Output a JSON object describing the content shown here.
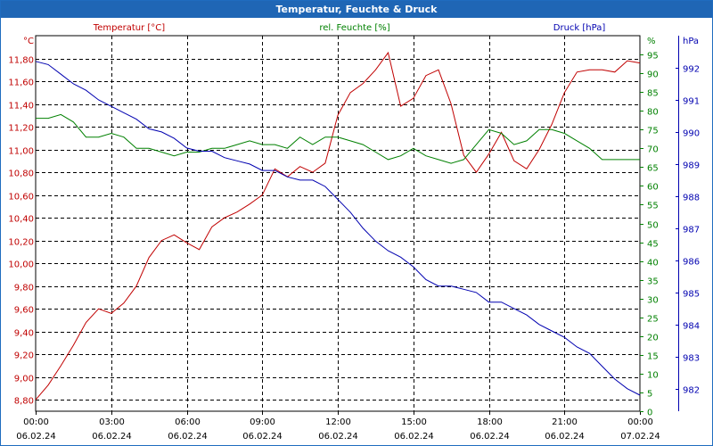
{
  "window": {
    "title": "Temperatur, Feuchte & Druck"
  },
  "colors": {
    "temperature": "#c00000",
    "humidity": "#008000",
    "pressure": "#0000b0",
    "title_bar": "#1f66b5"
  },
  "chart_data": {
    "type": "line",
    "title": "Temperatur, Feuchte & Druck",
    "x_ticks": [
      {
        "time": "00:00",
        "date": "06.02.24"
      },
      {
        "time": "03:00",
        "date": "06.02.24"
      },
      {
        "time": "06:00",
        "date": "06.02.24"
      },
      {
        "time": "09:00",
        "date": "06.02.24"
      },
      {
        "time": "12:00",
        "date": "06.02.24"
      },
      {
        "time": "15:00",
        "date": "06.02.24"
      },
      {
        "time": "18:00",
        "date": "06.02.24"
      },
      {
        "time": "21:00",
        "date": "06.02.24"
      },
      {
        "time": "00:00",
        "date": "07.02.24"
      }
    ],
    "x_range_hours": [
      0,
      24
    ],
    "grid": true,
    "axes": {
      "temperature": {
        "unit_label": "°C",
        "range": [
          8.7,
          12.0
        ],
        "ticks": [
          "8,80",
          "9,00",
          "9,20",
          "9,40",
          "9,60",
          "9,80",
          "10,00",
          "10,20",
          "10,40",
          "10,60",
          "10,80",
          "11,00",
          "11,20",
          "11,40",
          "11,60",
          "11,80"
        ]
      },
      "humidity": {
        "unit_label": "%",
        "range": [
          0,
          100
        ],
        "ticks": [
          "0",
          "5",
          "10",
          "15",
          "20",
          "25",
          "30",
          "35",
          "40",
          "45",
          "50",
          "55",
          "60",
          "65",
          "70",
          "75",
          "80",
          "85",
          "90",
          "95"
        ]
      },
      "pressure": {
        "unit_label": "hPa",
        "range": [
          981.3,
          993.0
        ],
        "ticks": [
          "982",
          "983",
          "984",
          "985",
          "986",
          "987",
          "988",
          "989",
          "990",
          "991",
          "992"
        ]
      }
    },
    "series": [
      {
        "name": "Temperatur [°C]",
        "axis": "temperature",
        "x": [
          0,
          0.5,
          1,
          1.5,
          2,
          2.5,
          3,
          3.5,
          4,
          4.5,
          5,
          5.5,
          6,
          6.5,
          7,
          7.5,
          8,
          8.5,
          9,
          9.5,
          10,
          10.5,
          11,
          11.5,
          12,
          12.5,
          13,
          13.5,
          14,
          14.5,
          15,
          15.5,
          16,
          16.5,
          17,
          17.5,
          18,
          18.5,
          19,
          19.5,
          20,
          20.5,
          21,
          21.5,
          22,
          22.5,
          23,
          23.5,
          24
        ],
        "values": [
          8.8,
          8.93,
          9.1,
          9.28,
          9.48,
          9.6,
          9.56,
          9.65,
          9.8,
          10.05,
          10.2,
          10.25,
          10.18,
          10.12,
          10.32,
          10.4,
          10.45,
          10.52,
          10.6,
          10.83,
          10.76,
          10.85,
          10.8,
          10.88,
          11.3,
          11.5,
          11.58,
          11.7,
          11.85,
          11.38,
          11.45,
          11.65,
          11.7,
          11.4,
          10.95,
          10.8,
          10.96,
          11.15,
          10.9,
          10.83,
          11.0,
          11.22,
          11.5,
          11.68,
          11.7,
          11.7,
          11.68,
          11.78,
          11.76
        ]
      },
      {
        "name": "rel. Feuchte [%]",
        "axis": "humidity",
        "x": [
          0,
          0.5,
          1,
          1.5,
          2,
          2.5,
          3,
          3.5,
          4,
          4.5,
          5,
          5.5,
          6,
          6.5,
          7,
          7.5,
          8,
          8.5,
          9,
          9.5,
          10,
          10.5,
          11,
          11.5,
          12,
          12.5,
          13,
          13.5,
          14,
          14.5,
          15,
          15.5,
          16,
          16.5,
          17,
          17.5,
          18,
          18.5,
          19,
          19.5,
          20,
          20.5,
          21,
          21.5,
          22,
          22.5,
          23,
          23.5,
          24
        ],
        "values": [
          78,
          78,
          79,
          77,
          73,
          73,
          74,
          73,
          70,
          70,
          69,
          68,
          69,
          69,
          70,
          70,
          71,
          72,
          71,
          71,
          70,
          73,
          71,
          73,
          73,
          72,
          71,
          69,
          67,
          68,
          70,
          68,
          67,
          66,
          67,
          71,
          75,
          74,
          71,
          72,
          75,
          75,
          74,
          72,
          70,
          67,
          67,
          67,
          67
        ]
      },
      {
        "name": "Druck [hPa]",
        "axis": "pressure",
        "x": [
          0,
          0.5,
          1,
          1.5,
          2,
          2.5,
          3,
          3.5,
          4,
          4.5,
          5,
          5.5,
          6,
          6.5,
          7,
          7.5,
          8,
          8.5,
          9,
          9.5,
          10,
          10.5,
          11,
          11.5,
          12,
          12.5,
          13,
          13.5,
          14,
          14.5,
          15,
          15.5,
          16,
          16.5,
          17,
          17.5,
          18,
          18.5,
          19,
          19.5,
          20,
          20.5,
          21,
          21.5,
          22,
          22.5,
          23,
          23.5,
          24
        ],
        "values": [
          992.2,
          992.1,
          991.8,
          991.5,
          991.3,
          991.0,
          990.8,
          990.6,
          990.4,
          990.1,
          990.0,
          989.8,
          989.5,
          989.4,
          989.4,
          989.2,
          989.1,
          989.0,
          988.8,
          988.8,
          988.6,
          988.5,
          988.5,
          988.3,
          987.9,
          987.5,
          987.0,
          986.6,
          986.3,
          986.1,
          985.8,
          985.4,
          985.2,
          985.2,
          985.1,
          985.0,
          984.7,
          984.7,
          984.5,
          984.3,
          984.0,
          983.8,
          983.6,
          983.3,
          983.1,
          982.7,
          982.3,
          982.0,
          981.8
        ]
      }
    ]
  }
}
